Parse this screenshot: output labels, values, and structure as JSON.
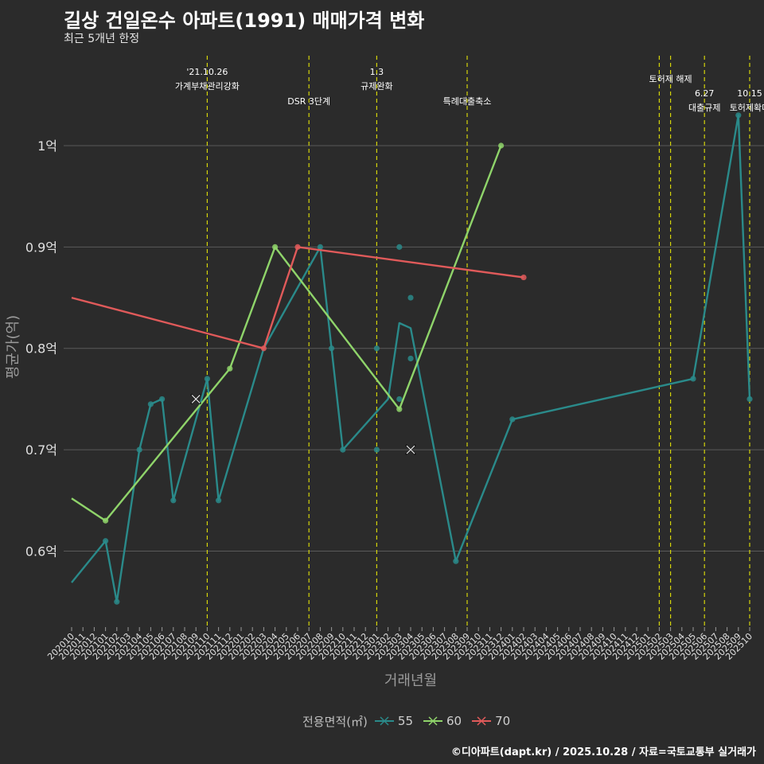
{
  "header": {
    "title": "길상 건일온수 아파트(1991) 매매가격 변화",
    "subtitle": "최근 5개년 한정"
  },
  "caption": "©디아파트(dapt.kr) / 2025.10.28 / 자료=국토교통부 실거래가",
  "colors": {
    "background": "#2b2b2b",
    "grid": "#5a5a5a",
    "vline": "#d4d40a",
    "s55": "#2a8a8a",
    "s60": "#8fd46a",
    "s70": "#e05a5a"
  },
  "chart_data": {
    "type": "line",
    "title": "길상 건일온수 아파트(1991) 매매가격 변화",
    "xlabel": "거래년월",
    "ylabel": "평균가(억)",
    "ylim": [
      0.525,
      1.095
    ],
    "yticks": [
      0.6,
      0.7,
      0.8,
      0.9,
      1.0
    ],
    "ytick_labels": [
      "0.6억",
      "0.7억",
      "0.8억",
      "0.9억",
      "1억"
    ],
    "categories": [
      "202010",
      "202011",
      "202012",
      "202101",
      "202102",
      "202103",
      "202104",
      "202105",
      "202106",
      "202107",
      "202108",
      "202109",
      "202110",
      "202111",
      "202112",
      "202201",
      "202202",
      "202203",
      "202204",
      "202205",
      "202206",
      "202207",
      "202208",
      "202209",
      "202210",
      "202211",
      "202212",
      "202301",
      "202302",
      "202303",
      "202304",
      "202305",
      "202306",
      "202307",
      "202308",
      "202309",
      "202310",
      "202311",
      "202312",
      "202401",
      "202402",
      "202403",
      "202404",
      "202405",
      "202406",
      "202407",
      "202408",
      "202409",
      "202410",
      "202411",
      "202412",
      "202501",
      "202502",
      "202503",
      "202504",
      "202505",
      "202506",
      "202507",
      "202508",
      "202509",
      "202510"
    ],
    "legend_title": "전용면적(㎡)",
    "series": [
      {
        "name": "55",
        "color": "#2a8a8a",
        "line": [
          [
            0,
            0.569
          ],
          [
            3,
            0.61
          ],
          [
            4,
            0.55
          ],
          [
            6,
            0.7
          ],
          [
            7,
            0.745
          ],
          [
            8,
            0.75
          ],
          [
            9,
            0.65
          ],
          [
            12,
            0.77
          ],
          [
            13,
            0.65
          ],
          [
            17,
            0.8
          ],
          [
            22,
            0.9
          ],
          [
            23,
            0.8
          ],
          [
            24,
            0.7
          ],
          [
            28,
            0.75
          ],
          [
            29,
            0.825
          ],
          [
            30,
            0.82
          ],
          [
            34,
            0.59
          ],
          [
            39,
            0.73
          ],
          [
            55,
            0.77
          ],
          [
            59,
            1.03
          ],
          [
            60,
            0.75
          ]
        ],
        "points": [
          [
            3,
            0.61
          ],
          [
            4,
            0.55
          ],
          [
            6,
            0.7
          ],
          [
            7,
            0.745
          ],
          [
            8,
            0.75
          ],
          [
            9,
            0.65
          ],
          [
            12,
            0.77
          ],
          [
            13,
            0.65
          ],
          [
            22,
            0.9
          ],
          [
            23,
            0.8
          ],
          [
            24,
            0.7
          ],
          [
            27,
            0.8
          ],
          [
            27,
            0.7
          ],
          [
            29,
            0.9
          ],
          [
            29,
            0.75
          ],
          [
            30,
            0.85
          ],
          [
            30,
            0.79
          ],
          [
            34,
            0.59
          ],
          [
            39,
            0.73
          ],
          [
            55,
            0.77
          ],
          [
            59,
            1.03
          ],
          [
            60,
            0.75
          ]
        ],
        "crosses": [
          [
            30,
            0.7
          ]
        ]
      },
      {
        "name": "60",
        "color": "#8fd46a",
        "line": [
          [
            0,
            0.652
          ],
          [
            3,
            0.63
          ],
          [
            14,
            0.78
          ],
          [
            18,
            0.9
          ],
          [
            29,
            0.74
          ],
          [
            38,
            1.0
          ]
        ],
        "points": [
          [
            3,
            0.63
          ],
          [
            14,
            0.78
          ],
          [
            18,
            0.9
          ],
          [
            29,
            0.74
          ],
          [
            38,
            1.0
          ]
        ],
        "crosses": [
          [
            11,
            0.75
          ]
        ]
      },
      {
        "name": "70",
        "color": "#e05a5a",
        "line": [
          [
            0,
            0.85
          ],
          [
            17,
            0.8
          ],
          [
            20,
            0.9
          ],
          [
            40,
            0.87
          ]
        ],
        "points": [
          [
            17,
            0.8
          ],
          [
            20,
            0.9
          ],
          [
            40,
            0.87
          ]
        ],
        "crosses": []
      }
    ],
    "events": [
      {
        "x": 12,
        "lines": [
          "'21.10.26",
          "가계부채관리강화"
        ],
        "row": 0
      },
      {
        "x": 21,
        "lines": [
          "DSR 3단계"
        ],
        "row": 2
      },
      {
        "x": 27,
        "lines": [
          "1.3",
          "규제완화"
        ],
        "row": 0
      },
      {
        "x": 35,
        "lines": [
          "특례대출축소"
        ],
        "row": 2
      },
      {
        "x": 52,
        "lines": [],
        "row": 0
      },
      {
        "x": 53,
        "lines": [
          "토허제 해제"
        ],
        "row": 1
      },
      {
        "x": 56,
        "lines": [
          "6.27",
          "대출규제"
        ],
        "row": 3
      },
      {
        "x": 60,
        "lines": [
          "10.15",
          "토허제확대"
        ],
        "row": 3
      }
    ]
  }
}
